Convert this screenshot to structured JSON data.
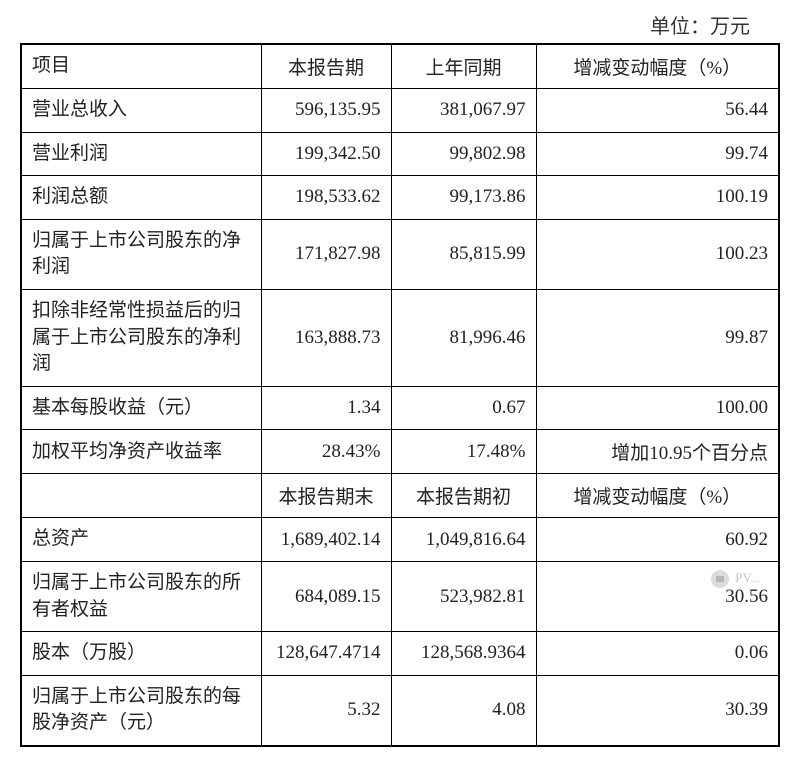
{
  "unit_label": "单位：万元",
  "header1": {
    "col1": "项目",
    "col2": "本报告期",
    "col3": "上年同期",
    "col4": "增减变动幅度（%）"
  },
  "rows1": [
    {
      "label": "营业总收入",
      "v1": "596,135.95",
      "v2": "381,067.97",
      "chg": "56.44"
    },
    {
      "label": "营业利润",
      "v1": "199,342.50",
      "v2": "99,802.98",
      "chg": "99.74"
    },
    {
      "label": "利润总额",
      "v1": "198,533.62",
      "v2": "99,173.86",
      "chg": "100.19"
    },
    {
      "label": "归属于上市公司股东的净利润",
      "v1": "171,827.98",
      "v2": "85,815.99",
      "chg": "100.23"
    },
    {
      "label": "扣除非经常性损益后的归属于上市公司股东的净利润",
      "v1": "163,888.73",
      "v2": "81,996.46",
      "chg": "99.87"
    },
    {
      "label": "基本每股收益（元）",
      "v1": "1.34",
      "v2": "0.67",
      "chg": "100.00"
    },
    {
      "label": "加权平均净资产收益率",
      "v1": "28.43%",
      "v2": "17.48%",
      "chg": "增加10.95个百分点"
    }
  ],
  "header2": {
    "col2": "本报告期末",
    "col3": "本报告期初",
    "col4": "增减变动幅度（%）"
  },
  "rows2": [
    {
      "label": "总资产",
      "v1": "1,689,402.14",
      "v2": "1,049,816.64",
      "chg": "60.92"
    },
    {
      "label": "归属于上市公司股东的所有者权益",
      "v1": "684,089.15",
      "v2": "523,982.81",
      "chg": "30.56"
    },
    {
      "label": "股本（万股）",
      "v1": "128,647.4714",
      "v2": "128,568.9364",
      "chg": "0.06"
    },
    {
      "label": "归属于上市公司股东的每股净资产（元）",
      "v1": "5.32",
      "v2": "4.08",
      "chg": "30.39"
    }
  ],
  "watermark_text": "PV..."
}
